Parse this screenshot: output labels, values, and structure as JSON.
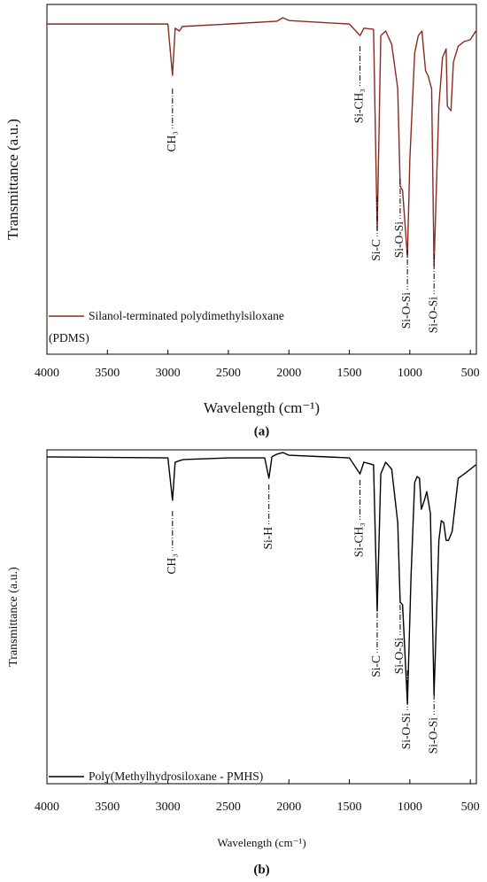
{
  "chart_data": [
    {
      "type": "line",
      "ylabel": "Transmittance (a.u.)",
      "xlabel": "Wavelength (cm⁻¹)",
      "caption": "(a)",
      "xlim": [
        4000,
        450
      ],
      "xticks": [
        4000,
        3500,
        3000,
        2500,
        2000,
        1500,
        1000,
        500
      ],
      "ylim": [
        0,
        100
      ],
      "x": [
        4000,
        3000,
        2962,
        2940,
        2905,
        2880,
        2500,
        2100,
        2050,
        2000,
        1500,
        1412,
        1380,
        1300,
        1270,
        1240,
        1200,
        1150,
        1100,
        1080,
        1060,
        1020,
        1000,
        960,
        930,
        900,
        870,
        850,
        820,
        800,
        760,
        730,
        700,
        690,
        660,
        640,
        600,
        550,
        500,
        455
      ],
      "series": [
        {
          "name": "Silanol-terminated polydimethylsiloxane (PDMS)",
          "color": "#8b2a1e",
          "values": [
            94.4,
            94.4,
            79.7,
            93.2,
            92.4,
            93.7,
            94.4,
            95.2,
            96.2,
            95.4,
            94.4,
            91.1,
            93.2,
            92.9,
            35.4,
            91.1,
            92.4,
            88.6,
            75.9,
            48.1,
            46.8,
            27.8,
            55.7,
            86.1,
            91.1,
            92.4,
            81.0,
            79.7,
            75.9,
            25.3,
            70.9,
            84.8,
            87.3,
            70.9,
            69.6,
            83.5,
            88.1,
            89.4,
            89.9,
            92.4
          ]
        }
      ],
      "annotations": [
        {
          "text": "CH₃",
          "x": 2962
        },
        {
          "text": "Si-CH₃",
          "x": 1412
        },
        {
          "text": "Si-C",
          "x": 1270
        },
        {
          "text": "Si-O-Si",
          "x": 1080
        },
        {
          "text": "Si-O-Si",
          "x": 1020
        },
        {
          "text": "Si-O-Si",
          "x": 800
        }
      ]
    },
    {
      "type": "line",
      "ylabel": "Transmittance (a.u.)",
      "xlabel": "Wavelength (cm⁻¹)",
      "caption": "(b)",
      "xlim": [
        4000,
        450
      ],
      "xticks": [
        4000,
        3500,
        3000,
        2500,
        2000,
        1500,
        1000,
        500
      ],
      "ylim": [
        0,
        100
      ],
      "x": [
        4000,
        3000,
        2962,
        2940,
        2900,
        2870,
        2500,
        2200,
        2165,
        2140,
        2100,
        2050,
        2000,
        1500,
        1412,
        1380,
        1300,
        1270,
        1240,
        1200,
        1150,
        1100,
        1080,
        1060,
        1020,
        990,
        960,
        940,
        920,
        905,
        880,
        860,
        830,
        800,
        760,
        740,
        720,
        700,
        680,
        650,
        600,
        550,
        500,
        455
      ],
      "series": [
        {
          "name": "Poly(Methylhydrosiloxane - PMHS)",
          "color": "#000000",
          "values": [
            97.9,
            97.6,
            84.9,
            96.3,
            96.8,
            97.1,
            97.6,
            97.6,
            91.5,
            97.9,
            98.7,
            99.2,
            98.4,
            97.6,
            92.8,
            96.3,
            95.5,
            51.7,
            92.8,
            96.3,
            94.2,
            78.2,
            54.4,
            53.6,
            23.9,
            62.3,
            90.2,
            92.0,
            91.5,
            82.2,
            84.9,
            87.5,
            80.9,
            26.5,
            72.9,
            78.8,
            78.2,
            72.9,
            72.9,
            75.6,
            91.5,
            92.8,
            94.2,
            95.5
          ]
        }
      ],
      "annotations": [
        {
          "text": "CH₃",
          "x": 2962
        },
        {
          "text": "Si-H",
          "x": 2165
        },
        {
          "text": "Si-CH₃",
          "x": 1412
        },
        {
          "text": "Si-C",
          "x": 1270
        },
        {
          "text": "Si-O-Si",
          "x": 1080
        },
        {
          "text": "Si-O-Si",
          "x": 1020
        },
        {
          "text": "Si-O-Si",
          "x": 800
        }
      ]
    }
  ]
}
